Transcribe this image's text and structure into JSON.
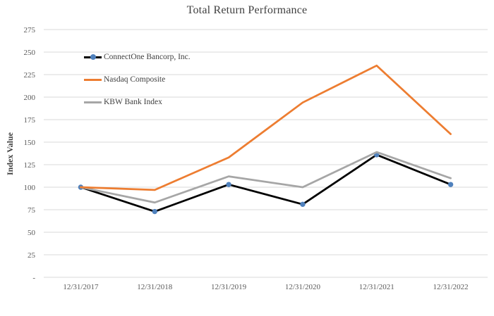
{
  "page": {
    "background": "#ffffff"
  },
  "chart_data": {
    "type": "line",
    "title": "Total Return Performance",
    "xlabel": "",
    "ylabel": "Index Value",
    "categories": [
      "12/31/2017",
      "12/31/2018",
      "12/31/2019",
      "12/31/2020",
      "12/31/2021",
      "12/31/2022"
    ],
    "series": [
      {
        "name": "ConnectOne Bancorp, Inc.",
        "color": "#000000",
        "marker": "circle",
        "marker_color": "#4F81BD",
        "values": [
          100,
          73,
          103,
          81,
          136,
          103
        ]
      },
      {
        "name": "Nasdaq Composite",
        "color": "#ED7D31",
        "marker": "none",
        "values": [
          100,
          97,
          133,
          194,
          235,
          159
        ]
      },
      {
        "name": "KBW Bank Index",
        "color": "#A6A6A6",
        "marker": "none",
        "values": [
          100,
          83,
          112,
          100,
          139,
          110
        ]
      }
    ],
    "ylim": [
      0,
      275
    ],
    "ytick_step": 25,
    "ytick_labels": [
      "-",
      "25",
      "50",
      "75",
      "100",
      "125",
      "150",
      "175",
      "200",
      "225",
      "250",
      "275"
    ],
    "grid": true,
    "gridline_color": "#D9D9D9",
    "tick_text_color": "#595959",
    "title_color": "#404040",
    "legend_position": "inside-top-left"
  }
}
